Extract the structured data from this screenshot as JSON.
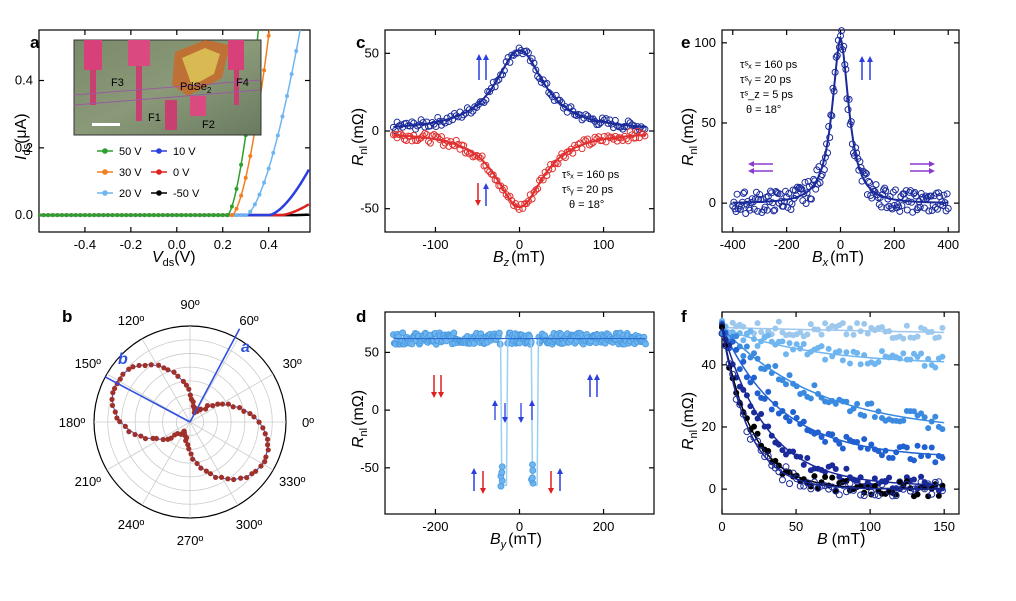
{
  "chart_data": [
    {
      "panel": "a",
      "type": "line",
      "xlabel": "V",
      "xlabel_sub": "ds",
      "xlabel_unit": "(V)",
      "ylabel": "I",
      "ylabel_sub": "ds",
      "ylabel_unit": "(μA)",
      "xlim": [
        -0.6,
        0.58
      ],
      "ylim": [
        -0.05,
        0.55
      ],
      "xticks": [
        "-0.4",
        "-0.2",
        "0.0",
        "0.2",
        "0.4"
      ],
      "xtick_values": [
        -0.4,
        -0.2,
        0.0,
        0.2,
        0.4
      ],
      "yticks": [
        "0.0",
        "0.2",
        "0.4"
      ],
      "ytick_values": [
        0.0,
        0.2,
        0.4
      ],
      "series": [
        {
          "name": "50 V",
          "color": "#2ca02c",
          "onset": 0.22,
          "k": 13.5,
          "marker": "filled"
        },
        {
          "name": "30 V",
          "color": "#f07f1f",
          "onset": 0.24,
          "k": 10.0,
          "marker": "filled"
        },
        {
          "name": "20 V",
          "color": "#6fb5f0",
          "onset": 0.3,
          "k": 5.5,
          "marker": "filled"
        },
        {
          "name": "10 V",
          "color": "#2b3fe0",
          "onset": 0.4,
          "k": 2.2,
          "marker": "line"
        },
        {
          "name": "0 V",
          "color": "#e02020",
          "onset": 0.45,
          "k": 0.9,
          "marker": "line"
        },
        {
          "name": "-50 V",
          "color": "#000000",
          "onset": 0.5,
          "k": 0.1,
          "marker": "line"
        }
      ],
      "inset_labels": [
        "F3",
        "PdSe",
        "2",
        "F4",
        "F1",
        "F2"
      ]
    },
    {
      "panel": "b",
      "type": "polar",
      "angle_labels": [
        "90º",
        "60º",
        "30º",
        "0º",
        "330º",
        "300º",
        "270º",
        "240º",
        "210º",
        "180º",
        "150º",
        "120º"
      ],
      "angle_values": [
        90,
        60,
        30,
        0,
        330,
        300,
        270,
        240,
        210,
        180,
        150,
        120
      ],
      "axis_a_label": "a",
      "axis_a_angle": 62,
      "axis_b_label": "b",
      "axis_b_angle": 152,
      "lobe_angle": 152,
      "lobe_color": "#a0302a"
    },
    {
      "panel": "c",
      "type": "scatter",
      "xlabel": "B",
      "xlabel_sub": "z",
      "xlabel_unit": "(mT)",
      "ylabel": "R",
      "ylabel_sub": "nl",
      "ylabel_unit": "(mΩ)",
      "xlim": [
        -160,
        160
      ],
      "ylim": [
        -65,
        65
      ],
      "xticks": [
        "-100",
        "0",
        "100"
      ],
      "xtick_values": [
        -100,
        0,
        100
      ],
      "yticks": [
        "-50",
        "0",
        "50"
      ],
      "ytick_values": [
        -50,
        0,
        50
      ],
      "series": [
        {
          "name": "parallel",
          "color": "#1a2a9a",
          "amplitude": 52,
          "width": 35
        },
        {
          "name": "antiparallel",
          "color": "#e03030",
          "amplitude": -49,
          "width": 35
        }
      ],
      "params": [
        "τ",
        "s",
        "x",
        " = 160 ps",
        "τ",
        "s",
        "y",
        " = 20 ps",
        "θ = 18°"
      ],
      "param_lines": [
        "τˢₓ = 160 ps",
        "τˢᵧ = 20 ps",
        "θ = 18°"
      ]
    },
    {
      "panel": "d",
      "type": "scatter",
      "xlabel": "B",
      "xlabel_sub": "y",
      "xlabel_unit": "(mT)",
      "ylabel": "R",
      "ylabel_sub": "nl",
      "ylabel_unit": "(mΩ)",
      "xlim": [
        -320,
        320
      ],
      "ylim": [
        -90,
        85
      ],
      "xticks": [
        "-200",
        "0",
        "200"
      ],
      "xtick_values": [
        -200,
        0,
        200
      ],
      "yticks": [
        "-50",
        "0",
        "50"
      ],
      "ytick_values": [
        -50,
        0,
        50
      ],
      "high_level": 62,
      "low_level": -65,
      "switch_fields": [
        -45,
        -28,
        28,
        45
      ],
      "color": "#6fb5f0"
    },
    {
      "panel": "e",
      "type": "scatter",
      "xlabel": "B",
      "xlabel_sub": "x",
      "xlabel_unit": "(mT)",
      "ylabel": "R",
      "ylabel_sub": "nl",
      "ylabel_unit": "(mΩ)",
      "xlim": [
        -440,
        440
      ],
      "ylim": [
        -18,
        108
      ],
      "xticks": [
        "-400",
        "-200",
        "0",
        "200",
        "400"
      ],
      "xtick_values": [
        -400,
        -200,
        0,
        200,
        400
      ],
      "yticks": [
        "0",
        "50",
        "100"
      ],
      "ytick_values": [
        0,
        50,
        100
      ],
      "peak": 103,
      "width": 42,
      "color": "#1a2a9a",
      "param_lines": [
        "τˢₓ = 160 ps",
        "τˢᵧ = 20 ps",
        "τˢ_z = 5 ps",
        "θ = 18°"
      ]
    },
    {
      "panel": "f",
      "type": "scatter",
      "xlabel": "B",
      "xlabel_unit": "(mT)",
      "ylabel": "R",
      "ylabel_sub": "nl",
      "ylabel_unit": "(mΩ)",
      "xlim": [
        0,
        160
      ],
      "ylim": [
        -8,
        57
      ],
      "xticks": [
        "0",
        "50",
        "100",
        "150"
      ],
      "xtick_values": [
        0,
        50,
        100,
        150
      ],
      "yticks": [
        "0",
        "20",
        "40"
      ],
      "ytick_values": [
        0,
        20,
        40
      ],
      "series": [
        {
          "color": "#9cc8ee",
          "floor": 47,
          "decay": 400,
          "filled": true
        },
        {
          "color": "#6fb5f0",
          "floor": 40,
          "decay": 60,
          "filled": true
        },
        {
          "color": "#3a8ae0",
          "floor": 18,
          "decay": 65,
          "filled": true
        },
        {
          "color": "#2060d0",
          "floor": 10,
          "decay": 40,
          "filled": true
        },
        {
          "color": "#1a2a9a",
          "floor": 1,
          "decay": 30,
          "filled": true
        },
        {
          "color": "#000000",
          "floor": 0,
          "decay": 20,
          "filled": true
        },
        {
          "color": "#1a2a9a",
          "floor": 0,
          "decay": 18,
          "filled": false
        }
      ]
    }
  ]
}
